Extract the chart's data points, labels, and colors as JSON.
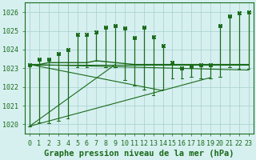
{
  "title": "Graphe pression niveau de la mer (hPa)",
  "xlabel_hours": [
    0,
    1,
    2,
    3,
    4,
    5,
    6,
    7,
    8,
    9,
    10,
    11,
    12,
    13,
    14,
    15,
    16,
    17,
    18,
    19,
    20,
    21,
    22,
    23
  ],
  "pressure_avg": [
    1023.2,
    1023.2,
    1023.3,
    1023.3,
    1023.3,
    1023.3,
    1023.3,
    1023.4,
    1023.35,
    1023.3,
    1023.25,
    1023.2,
    1023.2,
    1023.2,
    1023.2,
    1023.2,
    1023.2,
    1023.2,
    1023.2,
    1023.2,
    1023.2,
    1023.2,
    1023.2,
    1023.2
  ],
  "spike_top": [
    1023.2,
    1023.5,
    1023.5,
    1023.8,
    1024.0,
    1024.8,
    1024.8,
    1024.95,
    1025.2,
    1025.3,
    1025.15,
    1024.65,
    1025.2,
    1024.7,
    1024.2,
    1023.3,
    1023.0,
    1023.1,
    1023.2,
    1023.2,
    1025.3,
    1025.8,
    1025.95,
    1026.0
  ],
  "spike_bot": [
    1019.9,
    1020.1,
    1020.05,
    1020.2,
    1020.3,
    1023.05,
    1023.05,
    1023.4,
    1023.05,
    1023.05,
    1022.35,
    1022.05,
    1021.85,
    1021.55,
    1021.85,
    1022.45,
    1022.45,
    1022.55,
    1022.45,
    1022.45,
    1022.55,
    1023.05,
    1022.95,
    1022.95
  ],
  "trend_lines": [
    {
      "x": [
        0,
        23
      ],
      "y": [
        1023.2,
        1023.2
      ]
    },
    {
      "x": [
        0,
        9
      ],
      "y": [
        1019.9,
        1023.2
      ]
    },
    {
      "x": [
        0,
        14
      ],
      "y": [
        1023.2,
        1021.8
      ]
    },
    {
      "x": [
        0,
        19
      ],
      "y": [
        1019.9,
        1022.5
      ]
    },
    {
      "x": [
        0,
        23
      ],
      "y": [
        1023.2,
        1022.9
      ]
    }
  ],
  "ylim": [
    1019.5,
    1026.5
  ],
  "yticks": [
    1020,
    1021,
    1022,
    1023,
    1024,
    1025,
    1026
  ],
  "line_color": "#1a6b1a",
  "bg_color": "#d6f0f0",
  "grid_color": "#a8cece",
  "title_fontsize": 7.5,
  "tick_fontsize": 6.0
}
